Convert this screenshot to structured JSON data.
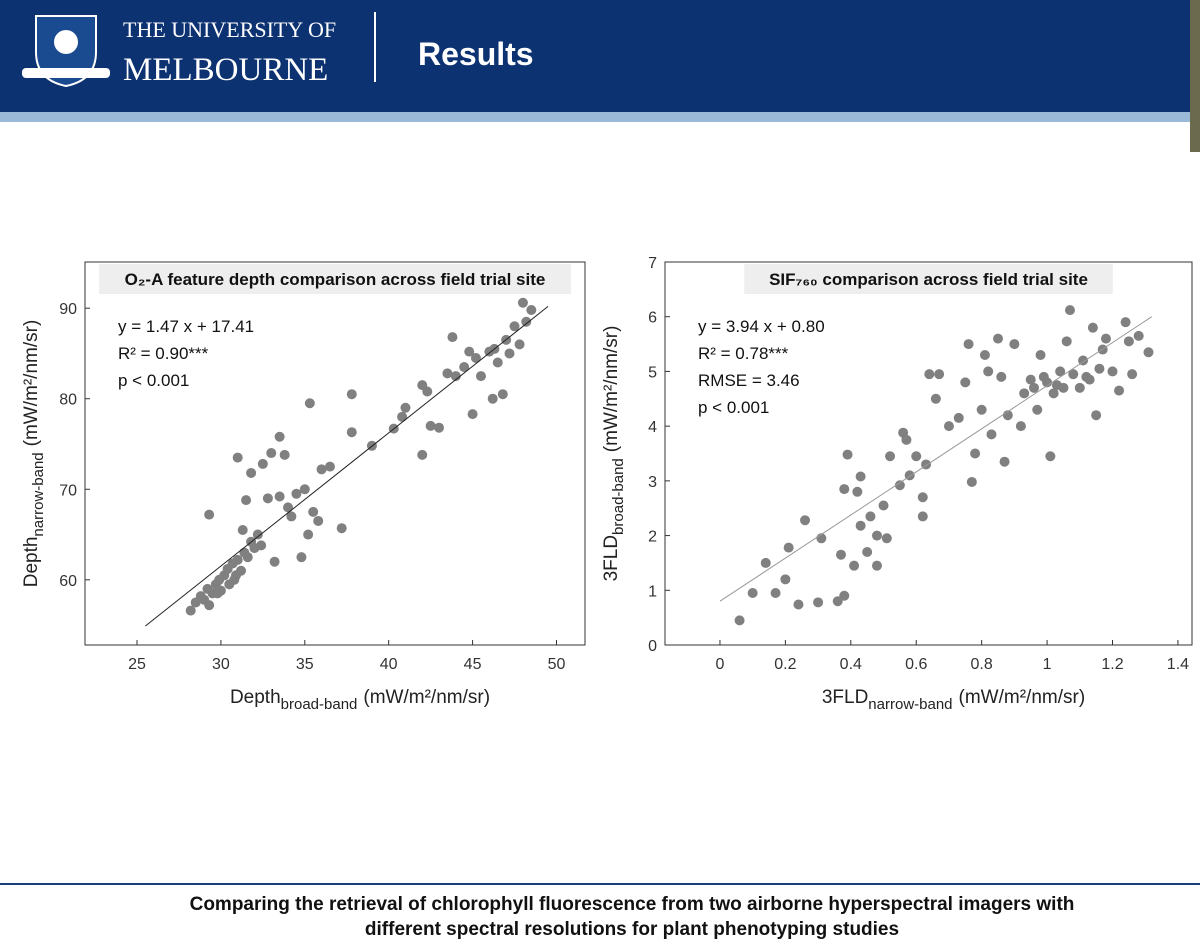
{
  "header": {
    "university_line1": "THE UNIVERSITY OF",
    "university_line2": "MELBOURNE",
    "title": "Results"
  },
  "footer": {
    "lines": [
      "Comparing the retrieval of chlorophyll fluorescence from two airborne hyperspectral imagers with",
      "different spectral resolutions for plant phenotyping studies"
    ]
  },
  "chart_data": [
    {
      "type": "scatter",
      "title": "O₂-A feature depth comparison across field trial site",
      "annotations": [
        "y = 1.47 x + 17.41",
        "R² = 0.90***",
        "p < 0.001"
      ],
      "x_label": {
        "text": "Depth",
        "sub": "broad-band",
        "unit": "(mW/m²/nm/sr)"
      },
      "y_label": {
        "text": "Depth",
        "sub": "narrow-band",
        "unit": "(mW/m²/nm/sr)"
      },
      "xlim": [
        21.9,
        51.7
      ],
      "ylim": [
        52.8,
        95.1
      ],
      "xticks": [
        25,
        30,
        35,
        40,
        45,
        50
      ],
      "yticks": [
        60,
        70,
        80,
        90
      ],
      "color": "#808080",
      "x": [
        28.2,
        28.5,
        28.8,
        29,
        29.2,
        29.3,
        29.5,
        29.7,
        29.9,
        30,
        30.2,
        30.4,
        30.5,
        30.7,
        30.9,
        31,
        31.2,
        31.4,
        31.6,
        31.8,
        32,
        32.2,
        31.5,
        31,
        29.3,
        31.8,
        32.5,
        33,
        33.5,
        33.8,
        32.8,
        33.2,
        34,
        34.5,
        35,
        35.3,
        35.5,
        36,
        36.5,
        34.8,
        35.2,
        37.2,
        37.8,
        37.8,
        39,
        40.3,
        40.8,
        41,
        42,
        42.3,
        42.5,
        43,
        43.5,
        43.8,
        44,
        44.5,
        45,
        45.2,
        45.5,
        46,
        46.2,
        46.5,
        46.8,
        47,
        47.2,
        47.5,
        47.8,
        48,
        48.2,
        48.5,
        29.8,
        30.8,
        31.3,
        32.4,
        33.5,
        34.2,
        35.8,
        44.8,
        46.3,
        42
      ],
      "values": [
        56.6,
        57.5,
        58.2,
        57.8,
        59,
        57.2,
        58.5,
        59.5,
        60,
        58.8,
        60.5,
        61.2,
        59.5,
        61.8,
        60.5,
        62.2,
        61,
        63,
        62.5,
        64.2,
        63.5,
        65,
        68.8,
        73.5,
        67.2,
        71.8,
        72.8,
        74,
        75.8,
        73.8,
        69,
        62,
        68,
        69.5,
        70,
        79.5,
        67.5,
        72.2,
        72.5,
        62.5,
        65,
        65.7,
        76.3,
        80.5,
        74.8,
        76.7,
        78,
        79,
        73.8,
        80.8,
        77,
        76.8,
        82.8,
        86.8,
        82.5,
        83.5,
        78.3,
        84.5,
        82.5,
        85.2,
        80,
        84,
        80.5,
        86.5,
        85,
        88,
        86,
        90.6,
        88.5,
        89.8,
        58.5,
        60,
        65.5,
        63.8,
        69.2,
        67,
        66.5,
        85.2,
        85.5,
        81.5
      ],
      "fit": {
        "x": [
          25.5,
          49.5
        ],
        "values": [
          54.9,
          90.2
        ],
        "color": "#222222"
      }
    },
    {
      "type": "scatter",
      "title": "SIF₇₆₀ comparison across field trial site",
      "annotations": [
        "y = 3.94 x + 0.80",
        "R² = 0.78***",
        "RMSE = 3.46",
        "p < 0.001"
      ],
      "x_label": {
        "text": "3FLD",
        "sub": "narrow-band",
        "unit": "(mW/m²/nm/sr)"
      },
      "y_label": {
        "text": "3FLD",
        "sub": "broad-band",
        "unit": "(mW/m²/nm/sr)"
      },
      "xlim": [
        -0.168,
        1.443
      ],
      "ylim": [
        0,
        7
      ],
      "xticks": [
        0,
        0.2,
        0.4,
        0.6,
        0.8,
        1,
        1.2,
        1.4
      ],
      "yticks": [
        0,
        1,
        2,
        3,
        4,
        5,
        6,
        7
      ],
      "color": "#808080",
      "x": [
        0.06,
        0.1,
        0.14,
        0.17,
        0.2,
        0.21,
        0.24,
        0.26,
        0.3,
        0.31,
        0.36,
        0.37,
        0.38,
        0.38,
        0.39,
        0.41,
        0.42,
        0.43,
        0.43,
        0.45,
        0.46,
        0.48,
        0.48,
        0.5,
        0.51,
        0.52,
        0.55,
        0.56,
        0.57,
        0.58,
        0.6,
        0.62,
        0.62,
        0.63,
        0.64,
        0.67,
        0.66,
        0.7,
        0.73,
        0.75,
        0.76,
        0.78,
        0.77,
        0.8,
        0.81,
        0.82,
        0.83,
        0.85,
        0.86,
        0.87,
        0.88,
        0.9,
        0.92,
        0.93,
        0.95,
        0.97,
        0.98,
        1.0,
        1.01,
        1.02,
        1.04,
        1.05,
        1.06,
        1.07,
        1.08,
        1.1,
        1.11,
        1.12,
        1.14,
        1.15,
        1.16,
        1.17,
        1.18,
        1.2,
        1.22,
        1.24,
        1.25,
        1.26,
        1.28,
        1.31,
        0.96,
        0.99,
        1.03,
        1.13
      ],
      "values": [
        0.45,
        0.95,
        1.5,
        0.95,
        1.2,
        1.78,
        0.74,
        2.28,
        0.78,
        1.95,
        0.8,
        1.65,
        2.85,
        0.9,
        3.48,
        1.45,
        2.8,
        3.08,
        2.18,
        1.7,
        2.35,
        1.45,
        2.0,
        2.55,
        1.95,
        3.45,
        2.92,
        3.88,
        3.75,
        3.1,
        3.45,
        2.7,
        2.35,
        3.3,
        4.95,
        4.95,
        4.5,
        4.0,
        4.15,
        4.8,
        5.5,
        3.5,
        2.98,
        4.3,
        5.3,
        5.0,
        3.85,
        5.6,
        4.9,
        3.35,
        4.2,
        5.5,
        4.0,
        4.6,
        4.85,
        4.3,
        5.3,
        4.8,
        3.45,
        4.6,
        5.0,
        4.7,
        5.55,
        6.12,
        4.95,
        4.7,
        5.2,
        4.9,
        5.8,
        4.2,
        5.05,
        5.4,
        5.6,
        5.0,
        4.65,
        5.9,
        5.55,
        4.95,
        5.65,
        5.35,
        4.7,
        4.9,
        4.75,
        4.85
      ],
      "fit": {
        "x": [
          0,
          1.32
        ],
        "values": [
          0.8,
          6.0
        ],
        "color": "#999999"
      }
    }
  ]
}
